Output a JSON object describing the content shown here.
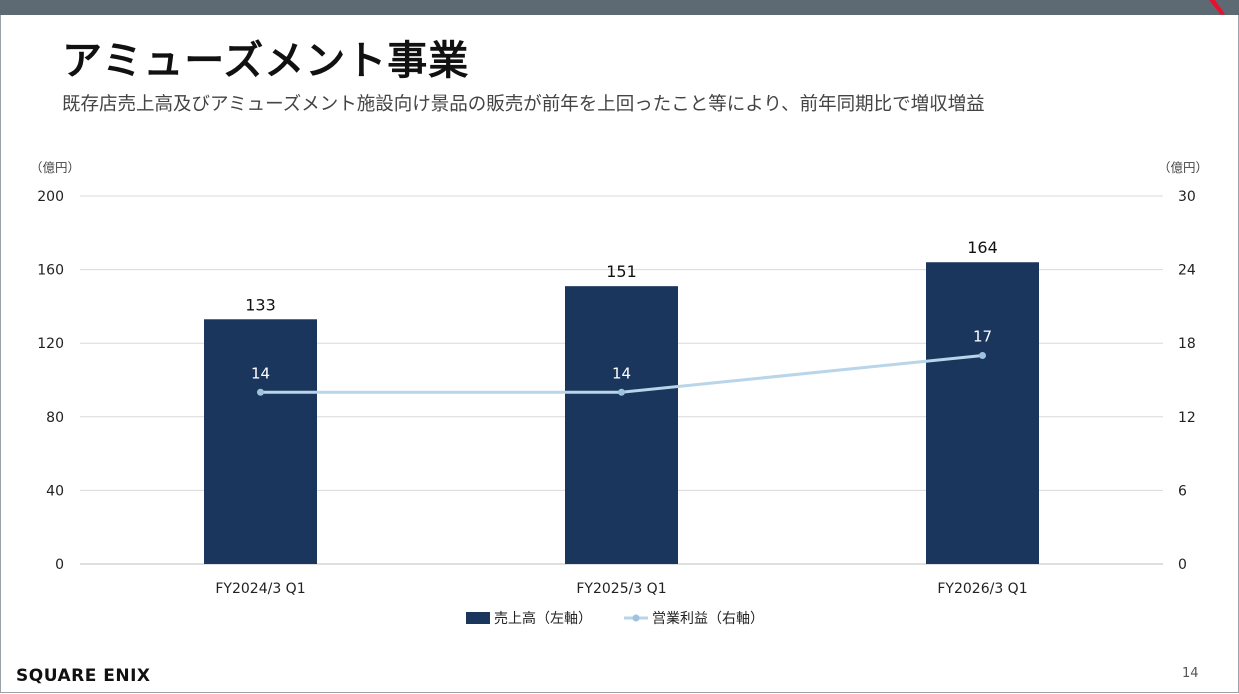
{
  "page": {
    "title": "アミューズメント事業",
    "subtitle": "既存店売上高及びアミューズメント施設向け景品の販売が前年を上回ったこと等により、前年同期比で増収増益",
    "logo": "SQUARE ENIX",
    "page_number": "14"
  },
  "colors": {
    "bar": "#1b365d",
    "line": "#b8d5ea",
    "topbar": "#5e6a73",
    "accent": "#e8112d",
    "grid": "#d9d9d9"
  },
  "chart_data": {
    "type": "bar",
    "categories": [
      "FY2024/3 Q1",
      "FY2025/3 Q1",
      "FY2026/3 Q1"
    ],
    "series": [
      {
        "name": "売上高（左軸）",
        "kind": "bar",
        "axis": "left",
        "values": [
          133,
          151,
          164
        ]
      },
      {
        "name": "営業利益（右軸）",
        "kind": "line",
        "axis": "right",
        "values": [
          14,
          14,
          17
        ]
      }
    ],
    "left_axis": {
      "unit": "（億円）",
      "ylim": [
        0,
        200
      ],
      "ticks": [
        0,
        40,
        80,
        120,
        160,
        200
      ]
    },
    "right_axis": {
      "unit": "（億円）",
      "ylim": [
        0,
        30
      ],
      "ticks": [
        0,
        6,
        12,
        18,
        24,
        30
      ]
    },
    "grid": true,
    "legend_position": "bottom-center"
  }
}
